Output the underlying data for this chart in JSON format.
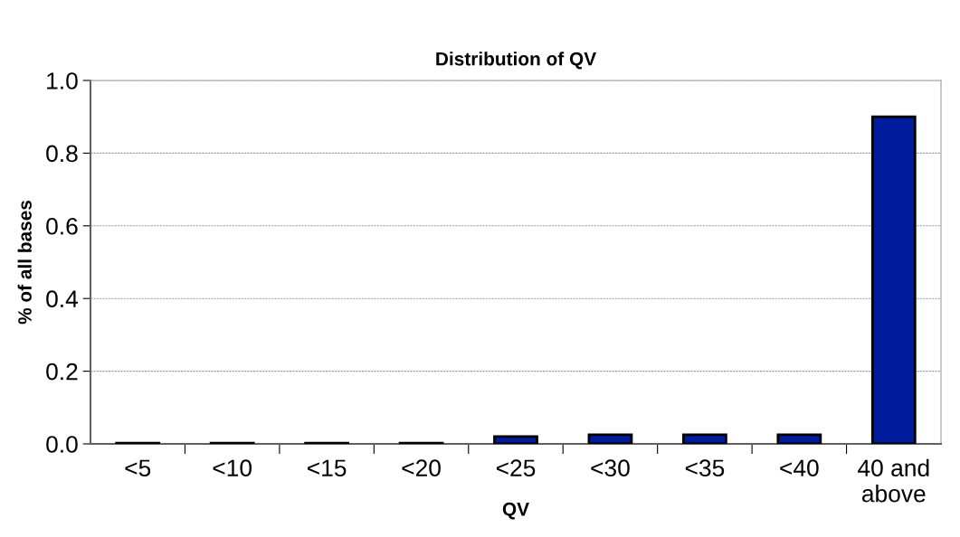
{
  "chart_data": {
    "type": "bar",
    "title": "Distribution of QV",
    "xlabel": "QV",
    "ylabel": "% of all bases",
    "categories": [
      "<5",
      "<10",
      "<15",
      "<20",
      "<25",
      "<30",
      "<35",
      "<40",
      "40 and\nabove"
    ],
    "values": [
      0.002,
      0.002,
      0.002,
      0.002,
      0.02,
      0.025,
      0.025,
      0.025,
      0.9
    ],
    "color": "#001c9c",
    "ylim": [
      0,
      1.0
    ],
    "yticks": [
      {
        "value": 0,
        "label": "0.0"
      },
      {
        "value": 0.2,
        "label": "0.2"
      },
      {
        "value": 0.4,
        "label": "0.4"
      },
      {
        "value": 0.6,
        "label": "0.6"
      },
      {
        "value": 0.8,
        "label": "0.8"
      },
      {
        "value": 1.0,
        "label": "1.0"
      }
    ],
    "grid": "y",
    "legend": false
  }
}
